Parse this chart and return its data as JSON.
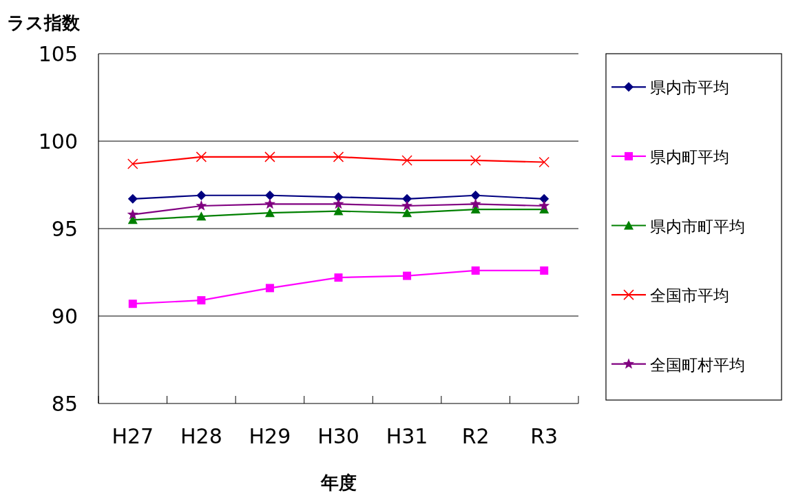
{
  "chart_data": {
    "type": "line",
    "ylabel": "ラス指数",
    "xlabel": "年度",
    "categories": [
      "H27",
      "H28",
      "H29",
      "H30",
      "H31",
      "R2",
      "R3"
    ],
    "ylim": [
      85,
      105
    ],
    "yticks": [
      85,
      90,
      95,
      100,
      105
    ],
    "grid": "y",
    "legend": "right",
    "series": [
      {
        "name": "県内市平均",
        "color": "#000080",
        "marker": "diamond",
        "values": [
          96.7,
          96.9,
          96.9,
          96.8,
          96.7,
          96.9,
          96.7
        ]
      },
      {
        "name": "県内町平均",
        "color": "#ff00ff",
        "marker": "square",
        "values": [
          90.7,
          90.9,
          91.6,
          92.2,
          92.3,
          92.6,
          92.6
        ]
      },
      {
        "name": "県内市町平均",
        "color": "#008000",
        "marker": "triangle",
        "values": [
          95.5,
          95.7,
          95.9,
          96.0,
          95.9,
          96.1,
          96.1
        ]
      },
      {
        "name": "全国市平均",
        "color": "#ff0000",
        "marker": "cross",
        "values": [
          98.7,
          99.1,
          99.1,
          99.1,
          98.9,
          98.9,
          98.8
        ]
      },
      {
        "name": "全国町村平均",
        "color": "#800080",
        "marker": "star",
        "values": [
          95.8,
          96.3,
          96.4,
          96.4,
          96.3,
          96.4,
          96.3
        ]
      }
    ]
  }
}
